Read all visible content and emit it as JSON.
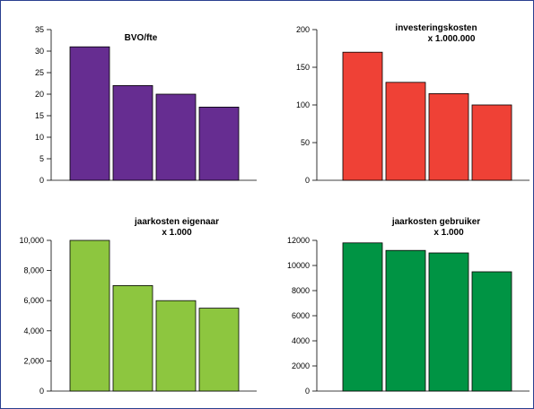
{
  "chart_data": [
    {
      "type": "bar",
      "title": [
        "BVO/fte"
      ],
      "categories": [
        "",
        "",
        "",
        ""
      ],
      "values": [
        31,
        22,
        20,
        17
      ],
      "ylim": [
        0,
        35
      ],
      "yticks": [
        0,
        5,
        10,
        15,
        20,
        25,
        30,
        35
      ],
      "yticklabels": [
        "0",
        "5",
        "10",
        "15",
        "20",
        "25",
        "30",
        "35"
      ],
      "color": "#662d91",
      "grid": false
    },
    {
      "type": "bar",
      "title": [
        "investeringskosten",
        "x 1.000.000"
      ],
      "categories": [
        "",
        "",
        "",
        ""
      ],
      "values": [
        170,
        130,
        115,
        100
      ],
      "ylim": [
        0,
        200
      ],
      "yticks": [
        0,
        50,
        100,
        150,
        200
      ],
      "yticklabels": [
        "0",
        "50",
        "100",
        "150",
        "200"
      ],
      "color": "#ef4136",
      "grid": false
    },
    {
      "type": "bar",
      "title": [
        "jaarkosten eigenaar",
        "x 1.000"
      ],
      "categories": [
        "",
        "",
        "",
        ""
      ],
      "values": [
        10000,
        7000,
        6000,
        5500
      ],
      "ylim": [
        0,
        10000
      ],
      "yticks": [
        0,
        2000,
        4000,
        6000,
        8000,
        10000
      ],
      "yticklabels": [
        "0",
        "2,000",
        "4,000",
        "6,000",
        "8,000",
        "10,000"
      ],
      "color": "#8dc63f",
      "grid": false
    },
    {
      "type": "bar",
      "title": [
        "jaarkosten gebruiker",
        "x 1.000"
      ],
      "categories": [
        "",
        "",
        "",
        ""
      ],
      "values": [
        11800,
        11200,
        11000,
        9500
      ],
      "ylim": [
        0,
        12000
      ],
      "yticks": [
        0,
        2000,
        4000,
        6000,
        8000,
        10000,
        12000
      ],
      "yticklabels": [
        "0",
        "2000",
        "4000",
        "6000",
        "8000",
        "10000",
        "12000"
      ],
      "color": "#009444",
      "grid": false
    }
  ]
}
